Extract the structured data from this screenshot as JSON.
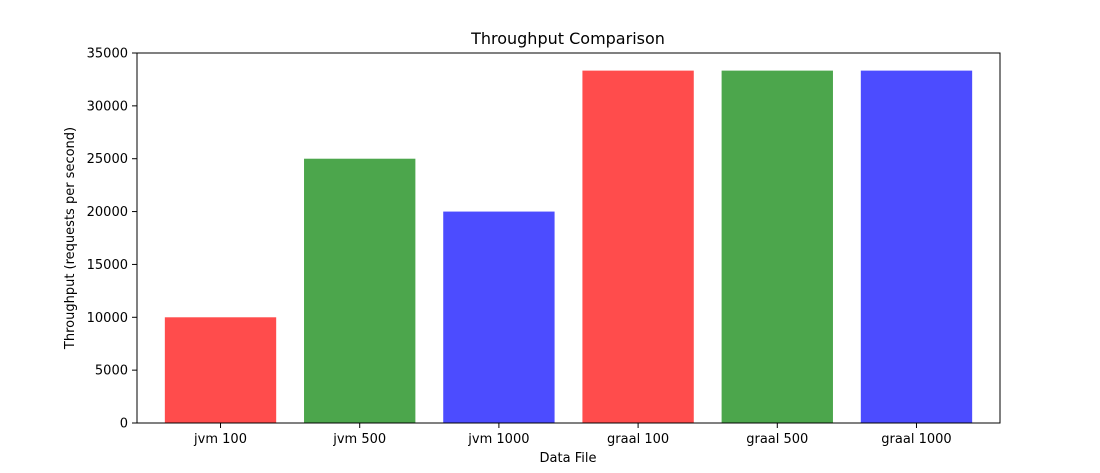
{
  "chart_data": {
    "type": "bar",
    "title": "Throughput Comparison",
    "xlabel": "Data File",
    "ylabel": "Throughput (requests per second)",
    "categories": [
      "jvm 100",
      "jvm 500",
      "jvm 1000",
      "graal 100",
      "graal 500",
      "graal 1000"
    ],
    "values": [
      10000,
      25000,
      20000,
      33333,
      33333,
      33333
    ],
    "bar_colors": [
      "#ff4c4c",
      "#4ca64c",
      "#4c4cff",
      "#ff4c4c",
      "#4ca64c",
      "#4c4cff"
    ],
    "ylim": [
      0,
      35000
    ],
    "yticks": [
      0,
      5000,
      10000,
      15000,
      20000,
      25000,
      30000,
      35000
    ],
    "ytick_labels": [
      "0",
      "5000",
      "10000",
      "15000",
      "20000",
      "25000",
      "30000",
      "35000"
    ],
    "grid": false,
    "legend": "none"
  }
}
